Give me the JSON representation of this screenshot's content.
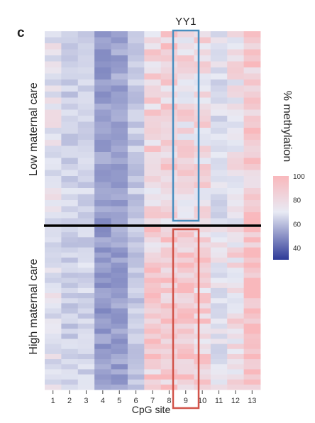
{
  "panel_label": "c",
  "chart_data": {
    "type": "heatmap",
    "title": "",
    "xlabel": "CpG site",
    "x_categories": [
      "1",
      "2",
      "3",
      "4",
      "5",
      "6",
      "7",
      "8",
      "9",
      "10",
      "11",
      "12",
      "13"
    ],
    "row_groups": [
      "Low maternal care",
      "High maternal care"
    ],
    "rows_per_group": [
      32,
      32
    ],
    "highlight_column": "9",
    "highlight_label": "YY1",
    "highlight_colors": {
      "Low maternal care": "#4a8fc0",
      "High maternal care": "#d2544a"
    },
    "colorbar": {
      "title": "% methylation",
      "ticks": [
        100,
        80,
        60,
        40
      ],
      "range": [
        30,
        100
      ],
      "colors": {
        "low": "#2e3a98",
        "mid": "#e8eaf4",
        "high": "#f9b8bc"
      }
    },
    "approx_column_mean_methylation": {
      "Low maternal care": [
        84,
        78,
        80,
        62,
        64,
        76,
        92,
        93,
        90,
        90,
        82,
        88,
        96
      ],
      "High maternal care": [
        83,
        77,
        79,
        61,
        63,
        75,
        94,
        95,
        96,
        93,
        84,
        90,
        98
      ]
    }
  }
}
